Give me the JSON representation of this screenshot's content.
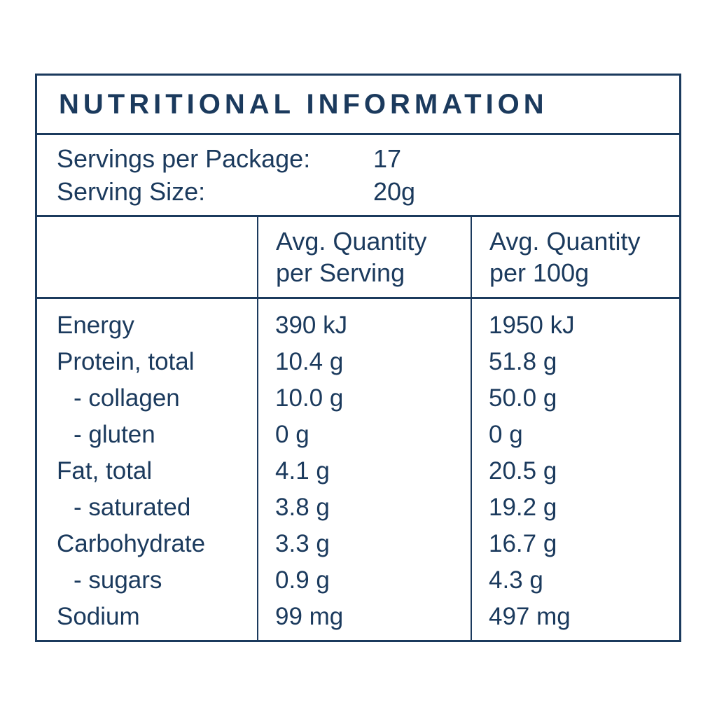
{
  "colors": {
    "text_navy": "#1b3a5d",
    "background": "#ffffff"
  },
  "title": "NUTRITIONAL INFORMATION",
  "serving_info": {
    "rows": [
      {
        "label": "Servings per Package:",
        "value": "17"
      },
      {
        "label": "Serving Size:",
        "value": "20g"
      }
    ]
  },
  "header": {
    "col2": {
      "line1": "Avg. Quantity",
      "line2": "per Serving"
    },
    "col3": {
      "line1": "Avg. Quantity",
      "line2": "per 100g"
    }
  },
  "rows": [
    {
      "label": "Energy",
      "per_serving": "390 kJ",
      "per_100g": "1950 kJ"
    },
    {
      "label": "Protein, total",
      "per_serving": "10.4 g",
      "per_100g": "51.8 g"
    },
    {
      "label": "- collagen",
      "per_serving": "10.0 g",
      "per_100g": "50.0 g"
    },
    {
      "label": "- gluten",
      "per_serving": "0 g",
      "per_100g": "0 g"
    },
    {
      "label": "Fat, total",
      "per_serving": "4.1 g",
      "per_100g": "20.5 g"
    },
    {
      "label": "- saturated",
      "per_serving": "3.8 g",
      "per_100g": "19.2 g"
    },
    {
      "label": "Carbohydrate",
      "per_serving": "3.3 g",
      "per_100g": "16.7 g"
    },
    {
      "label": "- sugars",
      "per_serving": "0.9 g",
      "per_100g": "4.3 g"
    },
    {
      "label": "Sodium",
      "per_serving": "99 mg",
      "per_100g": "497 mg"
    }
  ]
}
